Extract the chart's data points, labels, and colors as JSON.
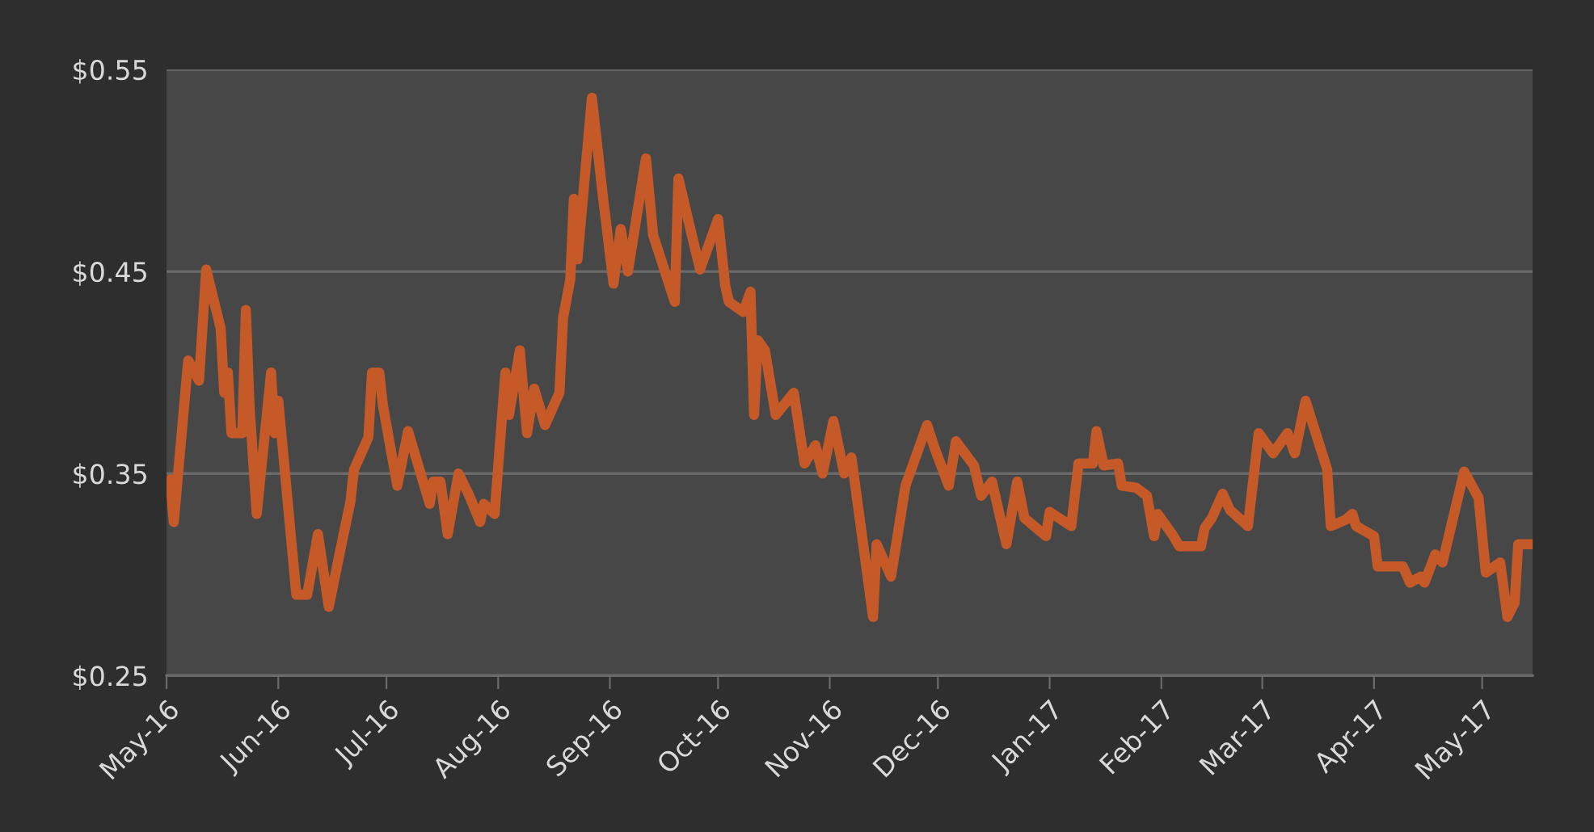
{
  "chart_data": {
    "type": "line",
    "grid": "y",
    "marker": "none",
    "line_style": "solid",
    "xlim": [
      "2016-05-01",
      "2017-05-15"
    ],
    "xticks": [
      {
        "value": "2016-05-01",
        "label": "May-16"
      },
      {
        "value": "2016-06-01",
        "label": "Jun-16"
      },
      {
        "value": "2016-07-01",
        "label": "Jul-16"
      },
      {
        "value": "2016-08-01",
        "label": "Aug-16"
      },
      {
        "value": "2016-09-01",
        "label": "Sep-16"
      },
      {
        "value": "2016-10-01",
        "label": "Oct-16"
      },
      {
        "value": "2016-11-01",
        "label": "Nov-16"
      },
      {
        "value": "2016-12-01",
        "label": "Dec-16"
      },
      {
        "value": "2017-01-01",
        "label": "Jan-17"
      },
      {
        "value": "2017-02-01",
        "label": "Feb-17"
      },
      {
        "value": "2017-03-01",
        "label": "Mar-17"
      },
      {
        "value": "2017-04-01",
        "label": "Apr-17"
      },
      {
        "value": "2017-05-01",
        "label": "May-17"
      }
    ],
    "ylim": [
      0.25,
      0.55
    ],
    "yticks": [
      {
        "value": 0.25,
        "label": "$0.25"
      },
      {
        "value": 0.35,
        "label": "$0.35"
      },
      {
        "value": 0.45,
        "label": "$0.45"
      },
      {
        "value": 0.55,
        "label": "$0.55"
      }
    ],
    "series": [
      {
        "color": "#c55a28",
        "x": [
          "2016-05-02",
          "2016-05-03",
          "2016-05-07",
          "2016-05-10",
          "2016-05-12",
          "2016-05-16",
          "2016-05-17",
          "2016-05-18",
          "2016-05-19",
          "2016-05-22",
          "2016-05-23",
          "2016-05-24",
          "2016-05-26",
          "2016-05-30",
          "2016-05-31",
          "2016-06-01",
          "2016-06-06",
          "2016-06-09",
          "2016-06-12",
          "2016-06-15",
          "2016-06-19",
          "2016-06-21",
          "2016-06-22",
          "2016-06-26",
          "2016-06-27",
          "2016-06-29",
          "2016-06-30",
          "2016-07-04",
          "2016-07-07",
          "2016-07-13",
          "2016-07-14",
          "2016-07-16",
          "2016-07-18",
          "2016-07-21",
          "2016-07-24",
          "2016-07-27",
          "2016-07-28",
          "2016-07-31",
          "2016-08-03",
          "2016-08-04",
          "2016-08-07",
          "2016-08-09",
          "2016-08-11",
          "2016-08-14",
          "2016-08-18",
          "2016-08-19",
          "2016-08-21",
          "2016-08-22",
          "2016-08-23",
          "2016-08-27",
          "2016-08-30",
          "2016-09-02",
          "2016-09-04",
          "2016-09-06",
          "2016-09-11",
          "2016-09-13",
          "2016-09-19",
          "2016-09-20",
          "2016-09-26",
          "2016-10-01",
          "2016-10-03",
          "2016-10-04",
          "2016-10-08",
          "2016-10-10",
          "2016-10-11",
          "2016-10-12",
          "2016-10-14",
          "2016-10-17",
          "2016-10-22",
          "2016-10-25",
          "2016-10-28",
          "2016-10-30",
          "2016-11-02",
          "2016-11-05",
          "2016-11-07",
          "2016-11-13",
          "2016-11-14",
          "2016-11-18",
          "2016-11-22",
          "2016-11-28",
          "2016-11-30",
          "2016-12-04",
          "2016-12-06",
          "2016-12-11",
          "2016-12-13",
          "2016-12-16",
          "2016-12-20",
          "2016-12-23",
          "2016-12-25",
          "2016-12-31",
          "2017-01-01",
          "2017-01-07",
          "2017-01-09",
          "2017-01-13",
          "2017-01-14",
          "2017-01-16",
          "2017-01-20",
          "2017-01-21",
          "2017-01-25",
          "2017-01-28",
          "2017-01-30",
          "2017-01-31",
          "2017-02-04",
          "2017-02-06",
          "2017-02-12",
          "2017-02-13",
          "2017-02-15",
          "2017-02-18",
          "2017-02-20",
          "2017-02-25",
          "2017-02-28",
          "2017-03-04",
          "2017-03-08",
          "2017-03-10",
          "2017-03-13",
          "2017-03-19",
          "2017-03-20",
          "2017-03-24",
          "2017-03-26",
          "2017-03-27",
          "2017-04-01",
          "2017-04-02",
          "2017-04-09",
          "2017-04-11",
          "2017-04-14",
          "2017-04-15",
          "2017-04-18",
          "2017-04-20",
          "2017-04-26",
          "2017-04-30",
          "2017-05-02",
          "2017-05-06",
          "2017-05-08",
          "2017-05-10",
          "2017-05-11",
          "2017-05-15"
        ],
        "values": [
          0.347,
          0.326,
          0.406,
          0.396,
          0.451,
          0.422,
          0.39,
          0.4,
          0.37,
          0.37,
          0.431,
          0.384,
          0.33,
          0.4,
          0.37,
          0.386,
          0.29,
          0.29,
          0.32,
          0.284,
          0.319,
          0.336,
          0.352,
          0.368,
          0.4,
          0.4,
          0.384,
          0.344,
          0.371,
          0.335,
          0.346,
          0.346,
          0.32,
          0.35,
          0.339,
          0.326,
          0.335,
          0.33,
          0.4,
          0.379,
          0.411,
          0.37,
          0.392,
          0.374,
          0.39,
          0.427,
          0.446,
          0.486,
          0.456,
          0.536,
          0.488,
          0.444,
          0.471,
          0.45,
          0.506,
          0.468,
          0.435,
          0.496,
          0.451,
          0.476,
          0.443,
          0.435,
          0.43,
          0.44,
          0.379,
          0.416,
          0.411,
          0.379,
          0.39,
          0.355,
          0.364,
          0.35,
          0.376,
          0.35,
          0.358,
          0.279,
          0.315,
          0.299,
          0.344,
          0.374,
          0.363,
          0.344,
          0.366,
          0.354,
          0.339,
          0.346,
          0.315,
          0.346,
          0.328,
          0.319,
          0.331,
          0.324,
          0.355,
          0.355,
          0.371,
          0.354,
          0.355,
          0.344,
          0.343,
          0.339,
          0.319,
          0.33,
          0.32,
          0.314,
          0.314,
          0.323,
          0.328,
          0.34,
          0.332,
          0.324,
          0.37,
          0.36,
          0.37,
          0.36,
          0.386,
          0.352,
          0.324,
          0.327,
          0.33,
          0.324,
          0.319,
          0.304,
          0.304,
          0.296,
          0.299,
          0.296,
          0.31,
          0.306,
          0.351,
          0.338,
          0.301,
          0.306,
          0.279,
          0.286,
          0.315,
          0.315
        ]
      }
    ]
  }
}
